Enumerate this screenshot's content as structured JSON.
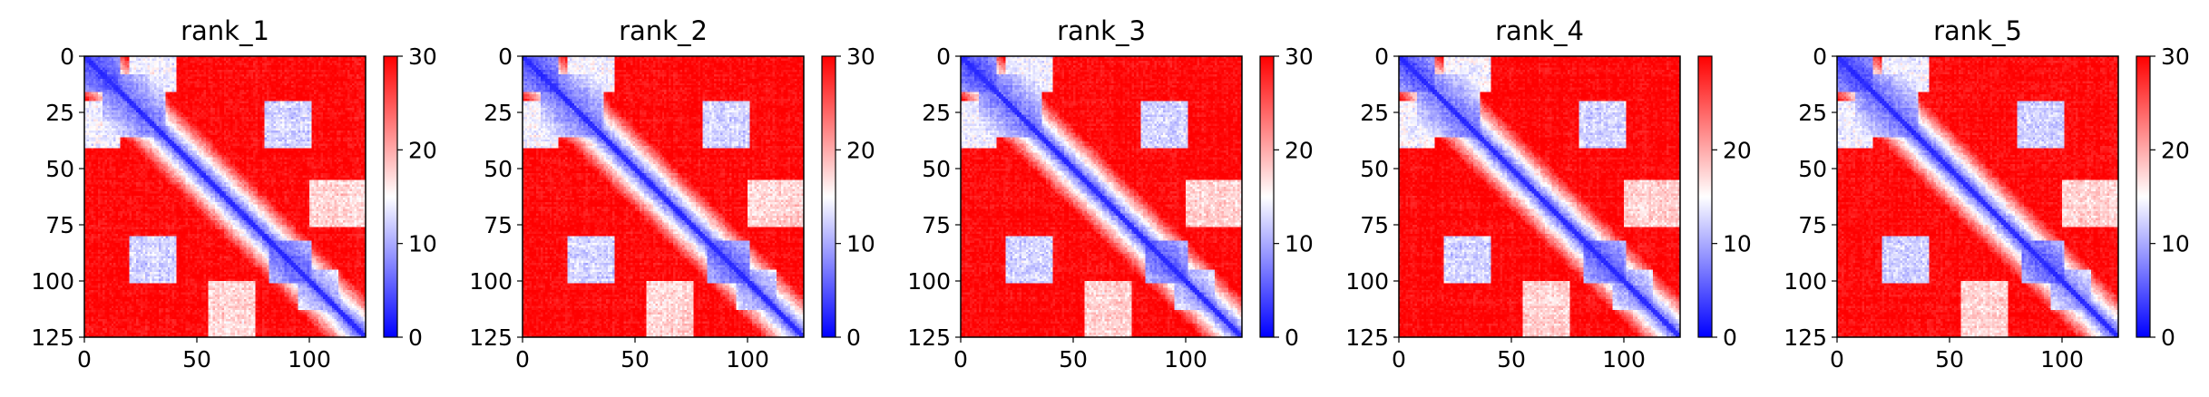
{
  "chart_data": [
    {
      "type": "heatmap",
      "title": "rank_1",
      "size": 125,
      "seed": 11,
      "xticks": [
        0,
        50,
        100
      ],
      "yticks": [
        0,
        25,
        50,
        75,
        100,
        125
      ],
      "xlim": [
        0,
        125
      ],
      "ylim": [
        0,
        125
      ],
      "colorbar_range": [
        0,
        30
      ],
      "colorbar_ticks": [
        0,
        10,
        20,
        30
      ],
      "colormap": "bwr",
      "colormap_colors": [
        "#0000ff",
        "#ffffff",
        "#ff0000"
      ]
    },
    {
      "type": "heatmap",
      "title": "rank_2",
      "size": 125,
      "seed": 23,
      "xticks": [
        0,
        50,
        100
      ],
      "yticks": [
        0,
        25,
        50,
        75,
        100,
        125
      ],
      "xlim": [
        0,
        125
      ],
      "ylim": [
        0,
        125
      ],
      "colorbar_range": [
        0,
        30
      ],
      "colorbar_ticks": [
        0,
        10,
        20,
        30
      ],
      "colormap": "bwr",
      "colormap_colors": [
        "#0000ff",
        "#ffffff",
        "#ff0000"
      ]
    },
    {
      "type": "heatmap",
      "title": "rank_3",
      "size": 125,
      "seed": 37,
      "xticks": [
        0,
        50,
        100
      ],
      "yticks": [
        0,
        25,
        50,
        75,
        100,
        125
      ],
      "xlim": [
        0,
        125
      ],
      "ylim": [
        0,
        125
      ],
      "colorbar_range": [
        0,
        30
      ],
      "colorbar_ticks": [
        0,
        10,
        20,
        30
      ],
      "colormap": "bwr",
      "colormap_colors": [
        "#0000ff",
        "#ffffff",
        "#ff0000"
      ]
    },
    {
      "type": "heatmap",
      "title": "rank_4",
      "size": 125,
      "seed": 41,
      "xticks": [
        0,
        50,
        100
      ],
      "yticks": [
        0,
        25,
        50,
        75,
        100,
        125
      ],
      "xlim": [
        0,
        125
      ],
      "ylim": [
        0,
        125
      ],
      "colorbar_range": [
        0,
        30
      ],
      "colorbar_ticks": [
        0,
        10,
        20
      ],
      "colormap": "bwr",
      "colormap_colors": [
        "#0000ff",
        "#ffffff",
        "#ff0000"
      ]
    },
    {
      "type": "heatmap",
      "title": "rank_5",
      "size": 125,
      "seed": 53,
      "xticks": [
        0,
        50,
        100
      ],
      "yticks": [
        0,
        25,
        50,
        75,
        100,
        125
      ],
      "xlim": [
        0,
        125
      ],
      "ylim": [
        0,
        125
      ],
      "colorbar_range": [
        0,
        30
      ],
      "colorbar_ticks": [
        0,
        10,
        20,
        30
      ],
      "colormap": "bwr",
      "colormap_colors": [
        "#0000ff",
        "#ffffff",
        "#ff0000"
      ]
    }
  ]
}
